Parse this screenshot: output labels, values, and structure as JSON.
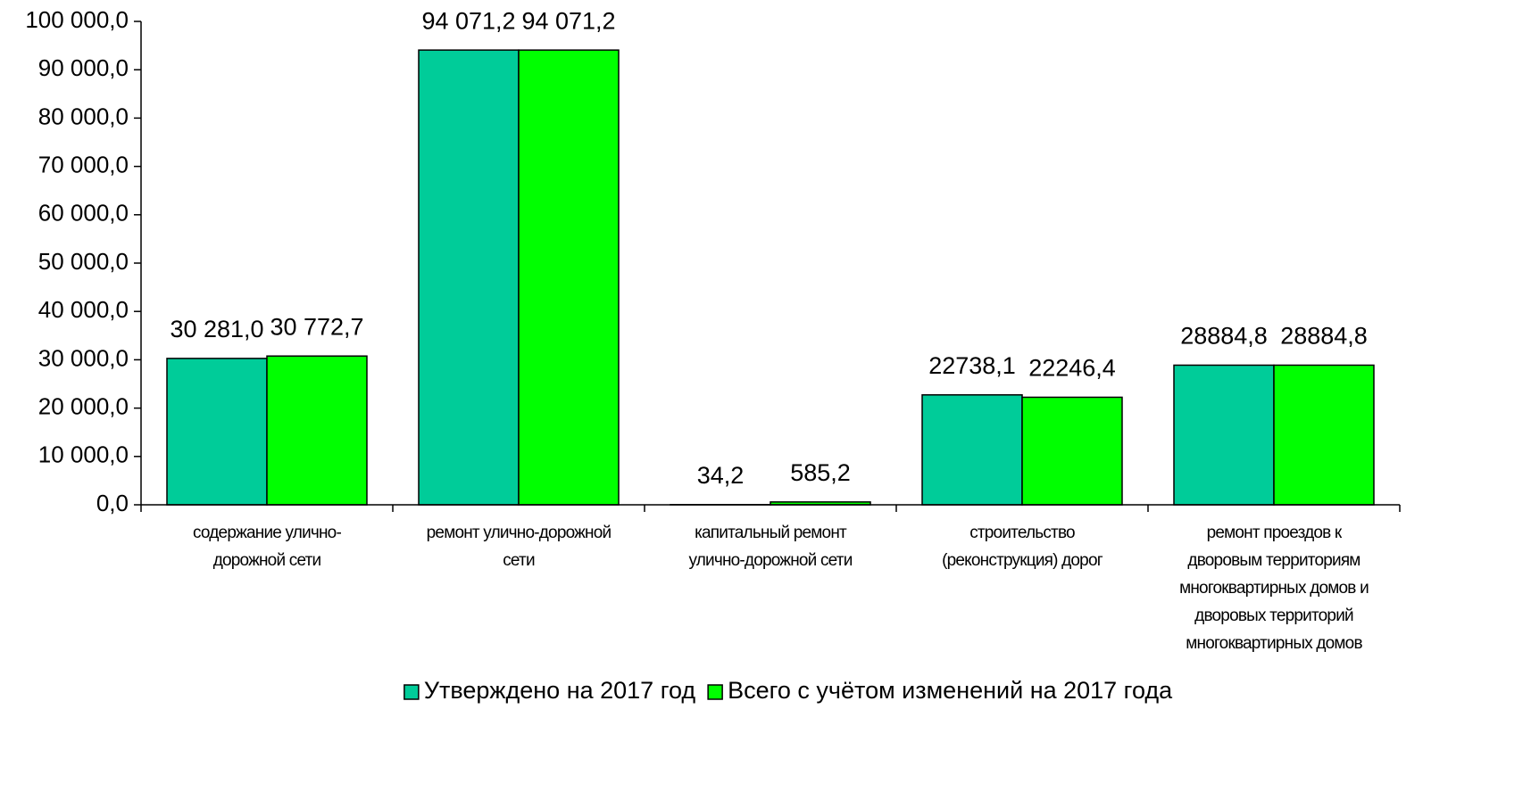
{
  "chart_data": {
    "type": "bar",
    "categories": [
      "содержание улично-\nдорожной сети",
      "ремонт улично-дорожной\nсети",
      "капитальный ремонт\nулично-дорожной сети",
      "строительство\n(реконструкция) дорог",
      "ремонт проездов к\nдворовым территориям\nмногоквартирных домов и\nдворовых территорий\nмногоквартирных домов"
    ],
    "series": [
      {
        "name": "Утверждено на 2017 год",
        "color": "#00cc99",
        "values": [
          30281.0,
          94071.2,
          34.2,
          22738.1,
          28884.8
        ],
        "value_labels": [
          "30 281,0",
          "94 071,2",
          "34,2",
          "22738,1",
          "28884,8"
        ]
      },
      {
        "name": "Всего с учётом изменений на 2017 года",
        "color": "#00ff00",
        "values": [
          30772.7,
          94071.2,
          585.2,
          22246.4,
          28884.8
        ],
        "value_labels": [
          "30 772,7",
          "94 071,2",
          "585,2",
          "22246,4",
          "28884,8"
        ]
      }
    ],
    "ylim": [
      0,
      100000
    ],
    "yticks": [
      {
        "value": 0,
        "label": "0,0"
      },
      {
        "value": 10000,
        "label": "10 000,0"
      },
      {
        "value": 20000,
        "label": "20 000,0"
      },
      {
        "value": 30000,
        "label": "30 000,0"
      },
      {
        "value": 40000,
        "label": "40 000,0"
      },
      {
        "value": 50000,
        "label": "50 000,0"
      },
      {
        "value": 60000,
        "label": "60 000,0"
      },
      {
        "value": 70000,
        "label": "70 000,0"
      },
      {
        "value": 80000,
        "label": "80 000,0"
      },
      {
        "value": 90000,
        "label": "90 000,0"
      },
      {
        "value": 100000,
        "label": "100 000,0"
      }
    ],
    "grid": false,
    "legend": "bottom"
  }
}
